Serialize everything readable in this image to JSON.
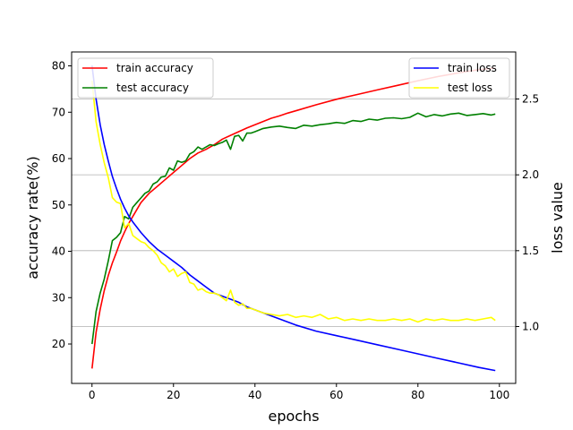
{
  "chart_data": {
    "type": "line",
    "xlabel": "epochs",
    "ylabel_left": "accuracy rate(%)",
    "ylabel_right": "loss value",
    "xlim": [
      -5,
      104
    ],
    "ylim_left": [
      11.5,
      83
    ],
    "ylim_right": [
      0.625,
      2.81
    ],
    "x_ticks": [
      0,
      20,
      40,
      60,
      80,
      100
    ],
    "y_ticks_left": [
      20,
      30,
      40,
      50,
      60,
      70,
      80
    ],
    "y_ticks_right": [
      1.0,
      1.5,
      2.0,
      2.5
    ],
    "y_tick_labels_right": [
      "1.0",
      "1.5",
      "2.0",
      "2.5"
    ],
    "grid": "horizontal on right axis",
    "legend_left": {
      "placement": "upper-left",
      "entries": [
        "train accuracy",
        "test accuracy"
      ]
    },
    "legend_right": {
      "placement": "upper-right",
      "entries": [
        "train loss",
        "test loss"
      ]
    },
    "series": [
      {
        "name": "train accuracy",
        "axis": "left",
        "color": "#ff0000",
        "x": [
          0,
          1,
          2,
          3,
          4,
          5,
          6,
          7,
          8,
          9,
          10,
          12,
          14,
          16,
          18,
          20,
          22,
          24,
          26,
          28,
          30,
          32,
          34,
          36,
          38,
          40,
          42,
          44,
          46,
          48,
          50,
          55,
          60,
          65,
          70,
          75,
          80,
          85,
          90,
          95,
          99
        ],
        "values": [
          14.7,
          22.5,
          27.5,
          31.5,
          34.8,
          37.5,
          39.8,
          42.2,
          44.2,
          46.0,
          47.5,
          50.5,
          52.5,
          54.0,
          55.5,
          57.0,
          58.5,
          60.0,
          61.2,
          62.0,
          63.0,
          64.2,
          65.0,
          65.8,
          66.6,
          67.3,
          68.0,
          68.7,
          69.2,
          69.8,
          70.3,
          71.6,
          72.8,
          73.8,
          74.8,
          75.8,
          76.8,
          77.7,
          78.5,
          79.2,
          79.5
        ]
      },
      {
        "name": "test accuracy",
        "axis": "left",
        "color": "#008000",
        "x": [
          0,
          1,
          2,
          3,
          4,
          5,
          6,
          7,
          8,
          9,
          10,
          11,
          12,
          13,
          14,
          15,
          16,
          17,
          18,
          19,
          20,
          21,
          22,
          23,
          24,
          25,
          26,
          27,
          28,
          29,
          30,
          31,
          32,
          33,
          34,
          35,
          36,
          37,
          38,
          39,
          40,
          42,
          44,
          46,
          48,
          50,
          52,
          54,
          56,
          58,
          60,
          62,
          64,
          66,
          68,
          70,
          72,
          74,
          76,
          78,
          80,
          82,
          84,
          86,
          88,
          90,
          92,
          94,
          96,
          98,
          99
        ],
        "values": [
          20.0,
          27.0,
          31.0,
          34.0,
          38.0,
          42.3,
          43.0,
          44.0,
          47.5,
          47.0,
          49.5,
          50.5,
          51.5,
          52.5,
          53.0,
          54.5,
          55.0,
          56.0,
          56.2,
          58.0,
          57.5,
          59.5,
          59.2,
          59.5,
          61.0,
          61.5,
          62.5,
          62.0,
          62.5,
          63.0,
          62.8,
          63.2,
          63.5,
          64.0,
          62.0,
          64.8,
          65.0,
          63.8,
          65.5,
          65.5,
          65.8,
          66.5,
          66.8,
          67.0,
          66.7,
          66.5,
          67.2,
          67.0,
          67.3,
          67.5,
          67.8,
          67.6,
          68.2,
          68.0,
          68.5,
          68.3,
          68.7,
          68.8,
          68.6,
          68.9,
          69.8,
          69.0,
          69.5,
          69.2,
          69.6,
          69.8,
          69.3,
          69.5,
          69.7,
          69.4,
          69.6
        ]
      },
      {
        "name": "train loss",
        "axis": "right",
        "color": "#0000ff",
        "x": [
          0,
          1,
          2,
          3,
          4,
          5,
          6,
          7,
          8,
          9,
          10,
          12,
          14,
          16,
          18,
          20,
          22,
          24,
          26,
          28,
          30,
          32,
          34,
          36,
          38,
          40,
          42,
          44,
          46,
          48,
          50,
          55,
          60,
          65,
          70,
          75,
          80,
          85,
          90,
          95,
          99
        ],
        "values": [
          2.72,
          2.5,
          2.33,
          2.2,
          2.09,
          1.99,
          1.91,
          1.84,
          1.78,
          1.73,
          1.69,
          1.62,
          1.56,
          1.51,
          1.47,
          1.43,
          1.39,
          1.34,
          1.3,
          1.26,
          1.22,
          1.2,
          1.18,
          1.16,
          1.13,
          1.11,
          1.09,
          1.07,
          1.05,
          1.03,
          1.01,
          0.97,
          0.94,
          0.91,
          0.88,
          0.85,
          0.82,
          0.79,
          0.76,
          0.73,
          0.71
        ]
      },
      {
        "name": "test loss",
        "axis": "right",
        "color": "#ffff00",
        "x": [
          0,
          1,
          2,
          3,
          4,
          5,
          6,
          7,
          8,
          9,
          10,
          11,
          12,
          13,
          14,
          15,
          16,
          17,
          18,
          19,
          20,
          21,
          22,
          23,
          24,
          25,
          26,
          27,
          28,
          29,
          30,
          31,
          32,
          33,
          34,
          35,
          36,
          37,
          38,
          39,
          40,
          42,
          44,
          46,
          48,
          50,
          52,
          54,
          56,
          58,
          60,
          62,
          64,
          66,
          68,
          70,
          72,
          74,
          76,
          78,
          80,
          82,
          84,
          86,
          88,
          90,
          92,
          94,
          96,
          98,
          99
        ],
        "values": [
          2.62,
          2.35,
          2.2,
          2.08,
          1.98,
          1.85,
          1.82,
          1.81,
          1.65,
          1.68,
          1.6,
          1.58,
          1.56,
          1.55,
          1.52,
          1.5,
          1.47,
          1.42,
          1.4,
          1.36,
          1.38,
          1.33,
          1.35,
          1.36,
          1.29,
          1.28,
          1.24,
          1.25,
          1.23,
          1.22,
          1.22,
          1.21,
          1.19,
          1.17,
          1.24,
          1.16,
          1.14,
          1.15,
          1.12,
          1.12,
          1.11,
          1.09,
          1.08,
          1.07,
          1.08,
          1.06,
          1.07,
          1.06,
          1.08,
          1.05,
          1.06,
          1.04,
          1.05,
          1.04,
          1.05,
          1.04,
          1.04,
          1.05,
          1.04,
          1.05,
          1.03,
          1.05,
          1.04,
          1.05,
          1.04,
          1.04,
          1.05,
          1.04,
          1.05,
          1.06,
          1.04
        ]
      }
    ]
  }
}
